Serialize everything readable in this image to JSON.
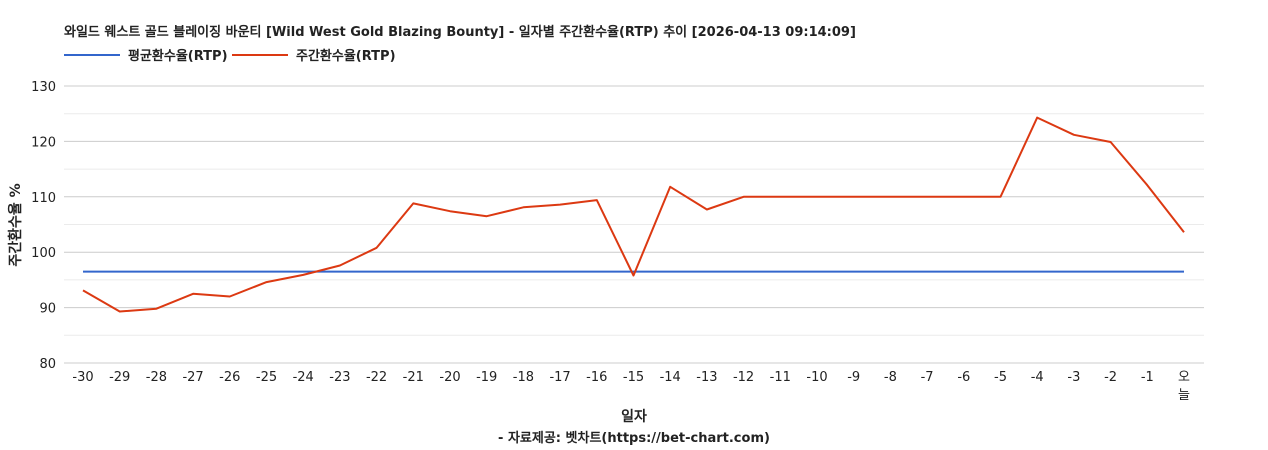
{
  "chart_data": {
    "type": "line",
    "title": "와일드 웨스트 골드 블레이징 바운티 [Wild West Gold Blazing Bounty] - 일자별 주간환수율(RTP) 추이 [2026-04-13 09:14:09]",
    "xlabel": "일자",
    "ylabel": "주간환수율 %",
    "source": "- 자료제공: 벳차트(https://bet-chart.com)",
    "legend_position": "top-left",
    "grid": true,
    "ylim": [
      80,
      130
    ],
    "yticks": [
      80,
      90,
      100,
      110,
      120,
      130
    ],
    "categories": [
      "-30",
      "-29",
      "-28",
      "-27",
      "-26",
      "-25",
      "-24",
      "-23",
      "-22",
      "-21",
      "-20",
      "-19",
      "-18",
      "-17",
      "-16",
      "-15",
      "-14",
      "-13",
      "-12",
      "-11",
      "-10",
      "-9",
      "-8",
      "-7",
      "-6",
      "-5",
      "-4",
      "-3",
      "-2",
      "-1",
      "오늘"
    ],
    "series": [
      {
        "name": "평균환수율(RTP)",
        "color": "#3366cc",
        "values": [
          96.5,
          96.5,
          96.5,
          96.5,
          96.5,
          96.5,
          96.5,
          96.5,
          96.5,
          96.5,
          96.5,
          96.5,
          96.5,
          96.5,
          96.5,
          96.5,
          96.5,
          96.5,
          96.5,
          96.5,
          96.5,
          96.5,
          96.5,
          96.5,
          96.5,
          96.5,
          96.5,
          96.5,
          96.5,
          96.5,
          96.5
        ]
      },
      {
        "name": "주간환수율(RTP)",
        "color": "#dc3912",
        "values": [
          93.1,
          89.3,
          89.8,
          92.5,
          92.0,
          94.6,
          95.9,
          97.6,
          100.8,
          108.8,
          107.4,
          106.5,
          108.1,
          108.6,
          109.4,
          95.8,
          111.8,
          107.7,
          110.0,
          110.0,
          110.0,
          110.0,
          110.0,
          110.0,
          110.0,
          110.0,
          124.3,
          121.2,
          119.9,
          112.1,
          103.6
        ]
      }
    ]
  }
}
